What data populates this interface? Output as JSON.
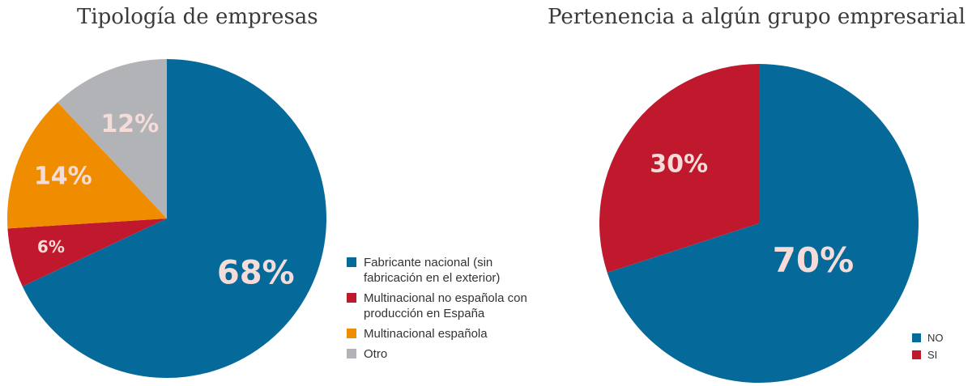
{
  "colors": {
    "blue": "#056a9a",
    "red": "#c0192e",
    "orange": "#f08c00",
    "gray": "#b1b3b6"
  },
  "chart_data": [
    {
      "type": "pie",
      "title": "Tipología de empresas",
      "legend_position": "right",
      "series": [
        {
          "categories": [
            "Fabricante nacional (sin fabricación en el exterior)",
            "Multinacional no española con producción en España",
            "Multinacional española",
            "Otro"
          ],
          "values": [
            68,
            6,
            14,
            12
          ],
          "labels": [
            "68%",
            "6%",
            "14%",
            "12%"
          ],
          "colors": [
            "#056a9a",
            "#c0192e",
            "#f08c00",
            "#b1b3b6"
          ]
        }
      ],
      "legend": [
        {
          "label": "Fabricante nacional (sin fabricación en el exterior)",
          "color": "#056a9a"
        },
        {
          "label": "Multinacional no española con producción en España",
          "color": "#c0192e"
        },
        {
          "label": "Multinacional española",
          "color": "#f08c00"
        },
        {
          "label": "Otro",
          "color": "#b1b3b6"
        }
      ]
    },
    {
      "type": "pie",
      "title": "Pertenencia a algún grupo empresarial",
      "legend_position": "bottom-right",
      "series": [
        {
          "categories": [
            "NO",
            "SI"
          ],
          "values": [
            70,
            30
          ],
          "labels": [
            "70%",
            "30%"
          ],
          "colors": [
            "#056a9a",
            "#c0192e"
          ]
        }
      ],
      "legend": [
        {
          "label": "NO",
          "color": "#056a9a"
        },
        {
          "label": "SI",
          "color": "#c0192e"
        }
      ]
    }
  ]
}
